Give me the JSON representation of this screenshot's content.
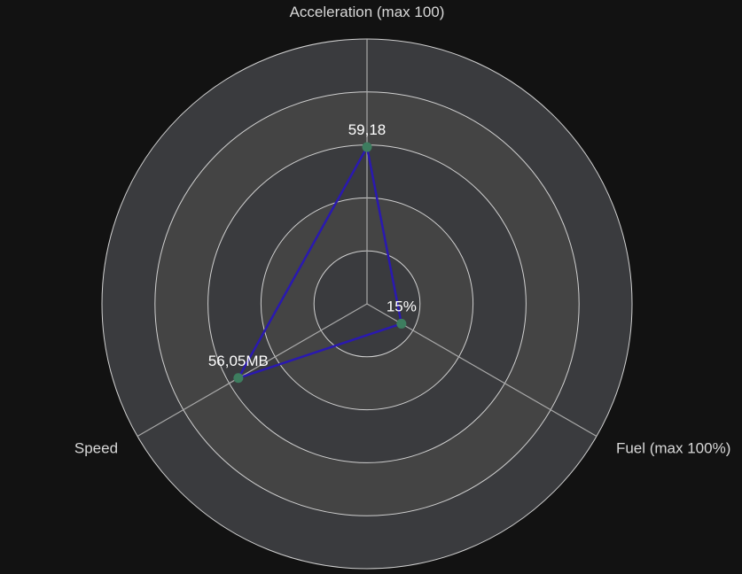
{
  "chart_data": {
    "type": "radar",
    "axes": [
      {
        "label": "Acceleration (max 100)",
        "max": 100
      },
      {
        "label": "Fuel (max 100%)",
        "max": 100
      },
      {
        "label": "Speed",
        "max": 100
      }
    ],
    "series": [
      {
        "values": [
          59.18,
          15,
          56.05
        ],
        "value_labels": [
          "59,18",
          "15%",
          "56,05MB"
        ],
        "color": "#2a19b0",
        "point_color": "#3d7d5f"
      }
    ],
    "rings": 5,
    "split_area_colors": [
      "#3a3b3e",
      "#444444"
    ],
    "ring_line_color": "#d0d0d0",
    "axis_line_color": "#a9a9a9",
    "label_color": "#d8d8d8",
    "value_label_color": "#ffffff"
  }
}
